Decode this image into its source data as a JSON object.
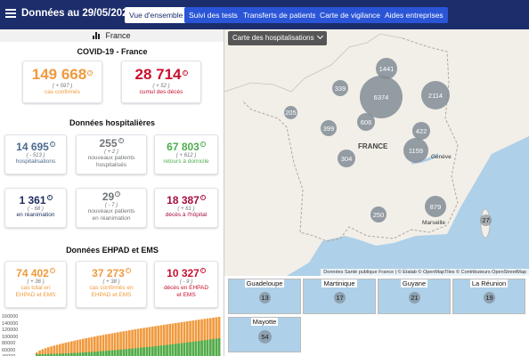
{
  "header": {
    "title": "Données au 29/05/2020",
    "tabs": [
      {
        "label": "Vue d'ensemble",
        "active": true
      },
      {
        "label": "Suivi des tests",
        "active": false
      },
      {
        "label": "Transferts de patients",
        "active": false
      },
      {
        "label": "Carte de vigilance",
        "active": false
      },
      {
        "label": "Aides entreprises",
        "active": false
      }
    ]
  },
  "region_selector": "France",
  "covid_section": {
    "title": "COVID-19 - France",
    "confirmed": {
      "value": "149 668",
      "delta": "( + 597 )",
      "label": "cas confirmés"
    },
    "deaths": {
      "value": "28 714",
      "delta": "( + 52 )",
      "label": "cumul des décès"
    }
  },
  "hospital_section": {
    "title": "Données hospitalières",
    "hospitalisations": {
      "value": "14 695",
      "delta": "( - 513 )",
      "label": "hospitalisations"
    },
    "new_hospitalised": {
      "value": "255",
      "delta": "( + 2 )",
      "label1": "nouveaux patients",
      "label2": "hospitalisés"
    },
    "returns_home": {
      "value": "67 803",
      "delta": "( + 612 )",
      "label": "retours à domicile"
    },
    "icu": {
      "value": "1 361",
      "delta": "( - 68 )",
      "label": "en réanimation"
    },
    "new_icu": {
      "value": "29",
      "delta": "( - 7 )",
      "label1": "nouveaux patients",
      "label2": "en réanimation"
    },
    "hospital_deaths": {
      "value": "18 387",
      "delta": "( + 61 )",
      "label": "décès à l'hôpital"
    }
  },
  "ehpad_section": {
    "title": "Données EHPAD et EMS",
    "total_cases": {
      "value": "74 402",
      "delta": "( + 36 )",
      "label1": "cas total en",
      "label2": "EHPAD et EMS"
    },
    "confirmed_cases": {
      "value": "37 273",
      "delta": "( + 38 )",
      "label1": "cas confirmés en",
      "label2": "EHPAD et EMS"
    },
    "deaths": {
      "value": "10 327",
      "delta": "( - 9 )",
      "label1": "décès en EHPAD",
      "label2": "et EMS"
    }
  },
  "mini_chart": {
    "yticks": [
      "160000",
      "140000",
      "120000",
      "100000",
      "80000",
      "60000",
      "40000"
    ]
  },
  "map": {
    "selector_label": "Carte des hospitalisations",
    "country_label": "FRANCE",
    "cities": [
      "Genève",
      "Marseille"
    ],
    "bubbles": [
      "1441",
      "339",
      "6374",
      "2114",
      "205",
      "399",
      "606",
      "422",
      "1159",
      "304",
      "879",
      "250",
      "27"
    ],
    "attribution": "Données Santé publique France | © Etalab © OpenMapTiles © Contributeurs OpenStreetMap"
  },
  "overseas": [
    {
      "name": "Guadeloupe",
      "value": "13"
    },
    {
      "name": "Martinique",
      "value": "17"
    },
    {
      "name": "Guyane",
      "value": "21"
    },
    {
      "name": "La Réunion",
      "value": "19"
    },
    {
      "name": "Mayotte",
      "value": "54"
    }
  ],
  "colors": {
    "header_bg": "#1b2d6b",
    "nav_button": "#2a55d6",
    "confirmed": "#f09a3e",
    "deaths": "#c8102e",
    "returns_home": "#4cae4c",
    "sea": "#aed0e8",
    "land": "#f2efe8"
  }
}
